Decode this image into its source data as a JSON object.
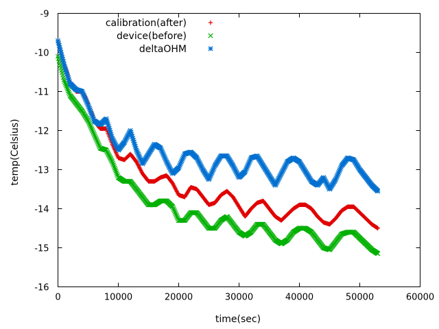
{
  "chart_data": {
    "type": "scatter",
    "xlabel": "time(sec)",
    "ylabel": "temp(Celsius)",
    "xlim": [
      0,
      60000
    ],
    "ylim": [
      -16,
      -9
    ],
    "x_ticks": [
      0,
      10000,
      20000,
      30000,
      40000,
      50000,
      60000
    ],
    "x_tick_labels": [
      "0",
      "10000",
      "20000",
      "30000",
      "40000",
      "50000",
      "60000"
    ],
    "y_ticks": [
      -16,
      -15,
      -14,
      -13,
      -12,
      -11,
      -10,
      -9
    ],
    "y_tick_labels": [
      "-16",
      "-15",
      "-14",
      "-13",
      "-12",
      "-11",
      "-10",
      "-9"
    ],
    "grid": false,
    "legend_position": "top-left",
    "series": [
      {
        "name": "calibration(after)",
        "marker": "+",
        "color": "#e00000",
        "x": [
          0,
          1000,
          2000,
          3000,
          4000,
          5000,
          6000,
          7000,
          8000,
          9000,
          10000,
          11000,
          12000,
          13000,
          14000,
          15000,
          16000,
          17000,
          18000,
          19000,
          20000,
          21000,
          22000,
          23000,
          24000,
          25000,
          26000,
          27000,
          28000,
          29000,
          30000,
          31000,
          32000,
          33000,
          34000,
          35000,
          36000,
          37000,
          38000,
          39000,
          40000,
          41000,
          42000,
          43000,
          44000,
          45000,
          46000,
          47000,
          48000,
          49000,
          50000,
          51000,
          52000,
          53000
        ],
        "y": [
          -9.7,
          -10.3,
          -10.75,
          -11.0,
          -11.0,
          -11.3,
          -11.75,
          -11.95,
          -11.95,
          -12.35,
          -12.7,
          -12.75,
          -12.6,
          -12.8,
          -13.1,
          -13.3,
          -13.3,
          -13.2,
          -13.15,
          -13.35,
          -13.65,
          -13.7,
          -13.45,
          -13.5,
          -13.7,
          -13.9,
          -13.85,
          -13.65,
          -13.55,
          -13.7,
          -13.95,
          -14.2,
          -14.0,
          -13.85,
          -13.8,
          -14.0,
          -14.2,
          -14.3,
          -14.15,
          -14.0,
          -13.9,
          -13.9,
          -14.0,
          -14.2,
          -14.35,
          -14.4,
          -14.25,
          -14.05,
          -13.95,
          -13.95,
          -14.1,
          -14.25,
          -14.4,
          -14.5
        ]
      },
      {
        "name": "device(before)",
        "marker": "x",
        "color": "#00b000",
        "x": [
          0,
          1000,
          2000,
          3000,
          4000,
          5000,
          6000,
          7000,
          8000,
          9000,
          10000,
          11000,
          12000,
          13000,
          14000,
          15000,
          16000,
          17000,
          18000,
          19000,
          20000,
          21000,
          22000,
          23000,
          24000,
          25000,
          26000,
          27000,
          28000,
          29000,
          30000,
          31000,
          32000,
          33000,
          34000,
          35000,
          36000,
          37000,
          38000,
          39000,
          40000,
          41000,
          42000,
          43000,
          44000,
          45000,
          46000,
          47000,
          48000,
          49000,
          50000,
          51000,
          52000,
          53000
        ],
        "y": [
          -10.1,
          -10.7,
          -11.1,
          -11.3,
          -11.5,
          -11.75,
          -12.1,
          -12.45,
          -12.5,
          -12.8,
          -13.2,
          -13.3,
          -13.3,
          -13.5,
          -13.7,
          -13.9,
          -13.9,
          -13.8,
          -13.8,
          -13.95,
          -14.3,
          -14.3,
          -14.1,
          -14.1,
          -14.3,
          -14.5,
          -14.5,
          -14.3,
          -14.2,
          -14.4,
          -14.6,
          -14.7,
          -14.6,
          -14.4,
          -14.4,
          -14.6,
          -14.8,
          -14.9,
          -14.8,
          -14.6,
          -14.5,
          -14.5,
          -14.6,
          -14.8,
          -15.0,
          -15.05,
          -14.85,
          -14.65,
          -14.6,
          -14.6,
          -14.75,
          -14.9,
          -15.05,
          -15.15
        ]
      },
      {
        "name": "deltaOHM",
        "marker": "*",
        "color": "#0070d0",
        "x": [
          0,
          1000,
          2000,
          3000,
          4000,
          5000,
          6000,
          7000,
          8000,
          9000,
          10000,
          11000,
          12000,
          13000,
          14000,
          15000,
          16000,
          17000,
          18000,
          19000,
          20000,
          21000,
          22000,
          23000,
          24000,
          25000,
          26000,
          27000,
          28000,
          29000,
          30000,
          31000,
          32000,
          33000,
          34000,
          35000,
          36000,
          37000,
          38000,
          39000,
          40000,
          41000,
          42000,
          43000,
          44000,
          45000,
          46000,
          47000,
          48000,
          49000,
          50000,
          51000,
          52000,
          53000
        ],
        "y": [
          -9.7,
          -10.3,
          -10.8,
          -10.95,
          -11.0,
          -11.35,
          -11.75,
          -11.85,
          -11.7,
          -12.2,
          -12.5,
          -12.3,
          -12.0,
          -12.5,
          -12.85,
          -12.6,
          -12.35,
          -12.45,
          -12.8,
          -13.1,
          -12.95,
          -12.6,
          -12.55,
          -12.7,
          -13.0,
          -13.25,
          -12.9,
          -12.65,
          -12.65,
          -12.9,
          -13.2,
          -13.05,
          -12.7,
          -12.65,
          -12.9,
          -13.15,
          -13.4,
          -13.1,
          -12.8,
          -12.7,
          -12.8,
          -13.05,
          -13.3,
          -13.4,
          -13.2,
          -13.5,
          -13.25,
          -12.9,
          -12.7,
          -12.75,
          -13.0,
          -13.2,
          -13.4,
          -13.55
        ]
      }
    ]
  }
}
